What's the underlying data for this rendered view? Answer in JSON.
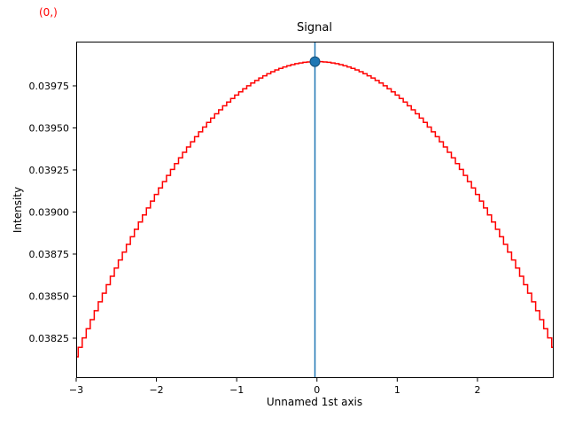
{
  "figure": {
    "cursor_label": "(0,)",
    "cursor_color": "#ff0000",
    "background": "#ffffff"
  },
  "chart_data": {
    "type": "line",
    "title": "Signal",
    "xlabel": "Unnamed 1st axis",
    "ylabel": "Intensity",
    "line_color": "#ff0000",
    "line_width": 1.5,
    "line_style": "steps-mid",
    "grid": false,
    "legend": "none",
    "xlim": [
      -3.0,
      2.95
    ],
    "ylim": [
      0.038013,
      0.040013
    ],
    "x_start": -3.0,
    "x_step": 0.05,
    "n_points": 120,
    "values": [
      0.038139,
      0.0381957,
      0.0382516,
      0.0383066,
      0.0383607,
      0.0384139,
      0.0384663,
      0.0385178,
      0.0385684,
      0.038618,
      0.0386668,
      0.0387147,
      0.0387617,
      0.0388078,
      0.0388529,
      0.0388971,
      0.0389404,
      0.0389828,
      0.0390242,
      0.0390648,
      0.0391043,
      0.039143,
      0.0391807,
      0.0392174,
      0.0392532,
      0.0392881,
      0.039322,
      0.0393549,
      0.0393869,
      0.0394179,
      0.039448,
      0.0394771,
      0.0395052,
      0.0395324,
      0.0395586,
      0.0395838,
      0.039608,
      0.0396313,
      0.0396536,
      0.0396749,
      0.0396953,
      0.0397146,
      0.039733,
      0.0397504,
      0.0397668,
      0.0397822,
      0.0397966,
      0.03981,
      0.0398225,
      0.0398339,
      0.0398444,
      0.0398539,
      0.0398623,
      0.0398698,
      0.0398763,
      0.0398818,
      0.0398862,
      0.0398897,
      0.0398922,
      0.0398937,
      0.0398942,
      0.0398937,
      0.0398922,
      0.0398897,
      0.0398862,
      0.0398818,
      0.0398763,
      0.0398698,
      0.0398623,
      0.0398539,
      0.0398444,
      0.0398339,
      0.0398225,
      0.03981,
      0.0397966,
      0.0397822,
      0.0397668,
      0.0397504,
      0.039733,
      0.0397146,
      0.0396953,
      0.0396749,
      0.0396536,
      0.0396313,
      0.039608,
      0.0395838,
      0.0395586,
      0.0395324,
      0.0395052,
      0.0394771,
      0.039448,
      0.0394179,
      0.0393869,
      0.0393549,
      0.039322,
      0.0392881,
      0.0392532,
      0.0392174,
      0.0391807,
      0.039143,
      0.0391043,
      0.0390648,
      0.0390242,
      0.0389828,
      0.0389404,
      0.0388971,
      0.0388529,
      0.0388078,
      0.0387617,
      0.0387147,
      0.0386668,
      0.038618,
      0.0385684,
      0.0385178,
      0.0384663,
      0.0384139,
      0.0383607,
      0.0383066,
      0.0382516,
      0.0381957
    ],
    "x_ticks": {
      "values": [
        -3,
        -2,
        -1,
        0,
        1,
        2
      ],
      "labels": [
        "−3",
        "−2",
        "−1",
        "0",
        "1",
        "2"
      ]
    },
    "y_ticks": {
      "values": [
        0.03825,
        0.0385,
        0.03875,
        0.039,
        0.03925,
        0.0395,
        0.03975
      ],
      "labels": [
        "0.03825",
        "0.03850",
        "0.03875",
        "0.03900",
        "0.03925",
        "0.03950",
        "0.03975"
      ]
    },
    "vline": {
      "x": -0.025,
      "color": "#1f77b4",
      "width": 1.5
    },
    "marker": {
      "x": -0.025,
      "y": 0.0398942,
      "color": "#1f77b4",
      "edge_color": "#15507a",
      "radius": 5.5
    }
  }
}
